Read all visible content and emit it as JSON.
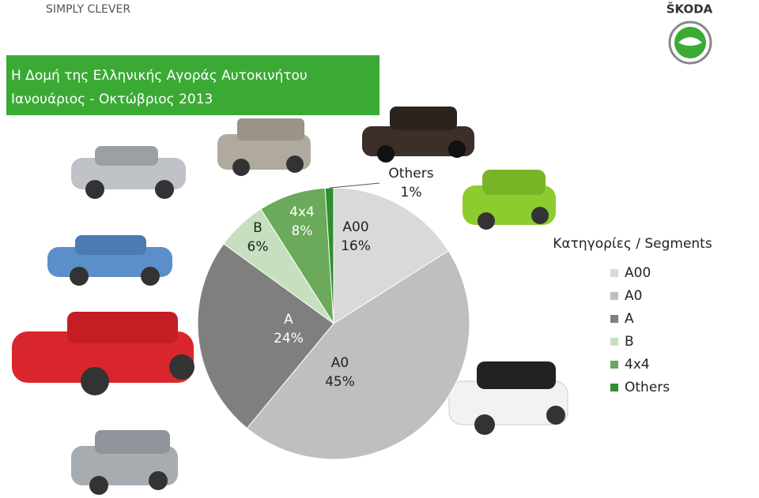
{
  "header": {
    "tagline": "SIMPLY CLEVER",
    "brand": "ŠKODA"
  },
  "chart_data": {
    "type": "pie",
    "title": "Η Δομή της Ελληνικής Αγοράς Αυτοκινήτου",
    "subtitle": "Ιανουάριος - Οκτώβριος 2013",
    "legend_title": "Κατηγορίες / Segments",
    "categories": [
      "A00",
      "A0",
      "A",
      "B",
      "4x4",
      "Others"
    ],
    "values": [
      16,
      45,
      24,
      6,
      8,
      1
    ],
    "value_labels": [
      "16%",
      "45%",
      "24%",
      "6%",
      "8%",
      "1%"
    ],
    "colors": [
      "#d9d9d9",
      "#bfbfbf",
      "#7f7f7f",
      "#c6e0bf",
      "#6aaa5a",
      "#2f8f2f"
    ]
  }
}
